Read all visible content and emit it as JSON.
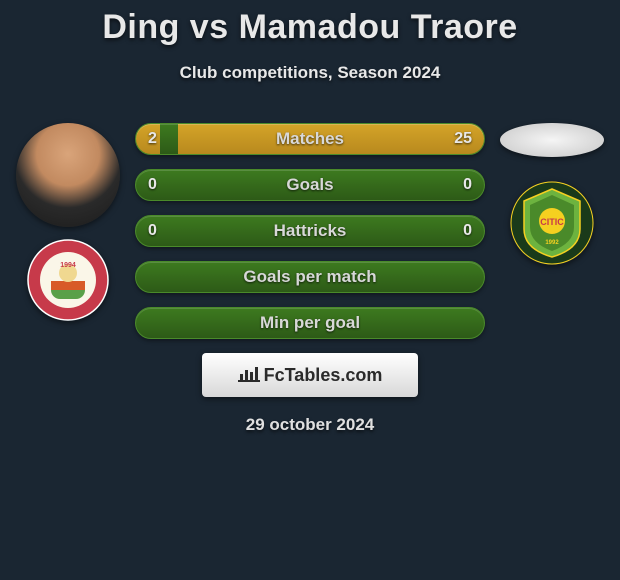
{
  "title": "Ding vs Mamadou Traore",
  "subtitle": "Club competitions, Season 2024",
  "date": "29 october 2024",
  "logo_text": "FcTables.com",
  "colors": {
    "background": "#1a2632",
    "bar_base": "#2d5a17",
    "bar_fill": "#b8891e",
    "text": "#e8e8e8"
  },
  "left_club": {
    "outer_ring": "#c73a4a",
    "inner": "#5aa048",
    "inner2": "#d85a28",
    "year": "1994"
  },
  "right_club": {
    "outer": "#1a3a1a",
    "shield": "#6db33f",
    "accent": "#f5d020",
    "year": "1992"
  },
  "stats": [
    {
      "label": "Matches",
      "left_val": "2",
      "right_val": "25",
      "left_pct": 7,
      "right_pct": 88
    },
    {
      "label": "Goals",
      "left_val": "0",
      "right_val": "0",
      "left_pct": 0,
      "right_pct": 0
    },
    {
      "label": "Hattricks",
      "left_val": "0",
      "right_val": "0",
      "left_pct": 0,
      "right_pct": 0
    },
    {
      "label": "Goals per match",
      "left_val": "",
      "right_val": "",
      "left_pct": 0,
      "right_pct": 0
    },
    {
      "label": "Min per goal",
      "left_val": "",
      "right_val": "",
      "left_pct": 0,
      "right_pct": 0
    }
  ]
}
